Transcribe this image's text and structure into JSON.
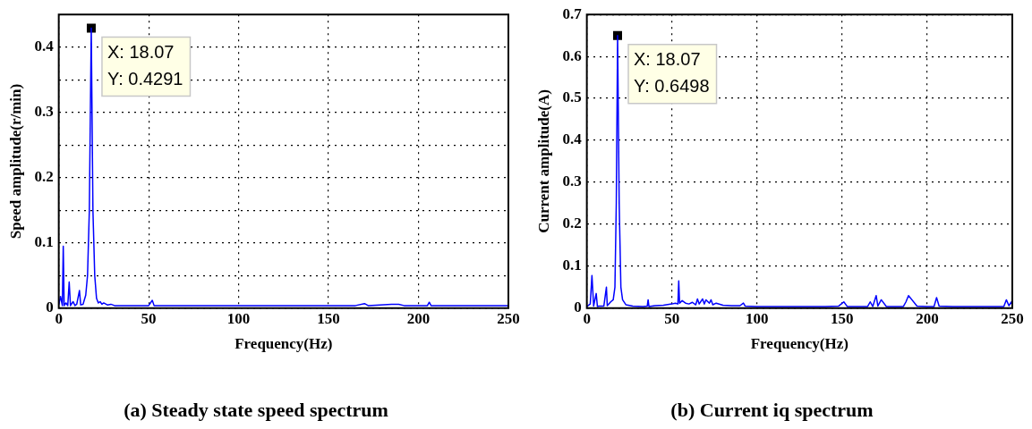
{
  "chart_data": [
    {
      "type": "line",
      "title": "(a) Steady state speed spectrum",
      "xlabel": "Frequency(Hz)",
      "ylabel": "Speed amplitude(r/min)",
      "xlim": [
        0,
        250
      ],
      "xticks": [
        0,
        50,
        100,
        150,
        200,
        250
      ],
      "ylim": [
        0,
        0.45
      ],
      "yticks": [
        0,
        {
          "value": 0.05,
          "label": null
        },
        0.1,
        {
          "value": 0.15,
          "label": null
        },
        0.2,
        {
          "value": 0.25,
          "label": null
        },
        0.3,
        {
          "value": 0.35,
          "label": null
        },
        0.4
      ],
      "grid": true,
      "legend": false,
      "marker": "none",
      "line_style": "solid",
      "series": [
        {
          "color": "#0000ff",
          "x": [
            0,
            1,
            2,
            2.5,
            3,
            4,
            5,
            5.8,
            6.5,
            8,
            9,
            10,
            11.5,
            12.2,
            13.5,
            15,
            16,
            17,
            18.07,
            19,
            20,
            21,
            22,
            23,
            24,
            25,
            27,
            29,
            31,
            34,
            38,
            42,
            46,
            50,
            52,
            53,
            55,
            60,
            70,
            80,
            90,
            100,
            110,
            130,
            150,
            165,
            170,
            172,
            185,
            189,
            192,
            200,
            205,
            206,
            207,
            210,
            220,
            235,
            250
          ],
          "values": [
            0.005,
            0.018,
            0.004,
            0.095,
            0.004,
            0.008,
            0.004,
            0.04,
            0.004,
            0.01,
            0.004,
            0.006,
            0.027,
            0.005,
            0.006,
            0.02,
            0.05,
            0.15,
            0.4291,
            0.15,
            0.05,
            0.015,
            0.008,
            0.01,
            0.006,
            0.008,
            0.005,
            0.006,
            0.004,
            0.004,
            0.004,
            0.004,
            0.004,
            0.004,
            0.012,
            0.004,
            0.004,
            0.004,
            0.004,
            0.004,
            0.004,
            0.004,
            0.004,
            0.004,
            0.004,
            0.004,
            0.007,
            0.004,
            0.006,
            0.006,
            0.004,
            0.004,
            0.004,
            0.009,
            0.004,
            0.004,
            0.004,
            0.004,
            0.004
          ]
        },
        {
          "type": "scatter",
          "color": "#000000",
          "marker": "square",
          "x": [
            18.07
          ],
          "values": [
            0.4291
          ]
        }
      ],
      "annotations": [
        {
          "text": "X: 18.07\nY: 0.4291",
          "x": 18.07,
          "y": 0.4291
        }
      ]
    },
    {
      "type": "line",
      "title": "(b) Current iq spectrum",
      "xlabel": "Frequency(Hz)",
      "ylabel": "Current amplitude(A)",
      "xlim": [
        0,
        250
      ],
      "xticks": [
        0,
        50,
        100,
        150,
        200,
        250
      ],
      "ylim": [
        0,
        0.7
      ],
      "yticks": [
        0,
        0.1,
        0.2,
        0.3,
        0.4,
        0.5,
        0.6,
        0.7
      ],
      "grid": true,
      "legend": false,
      "marker": "none",
      "line_style": "solid",
      "series": [
        {
          "color": "#0000ff",
          "x": [
            0,
            2,
            3,
            4,
            5.5,
            6.2,
            7,
            10,
            11.5,
            12,
            12.5,
            14,
            15.5,
            16.5,
            17.3,
            18.07,
            19,
            20,
            21,
            23,
            27,
            33,
            35.5,
            36,
            36.5,
            40,
            45,
            50,
            52,
            53.5,
            54,
            54.5,
            56,
            58,
            60,
            62,
            64,
            65,
            66,
            68,
            69,
            70,
            72,
            73,
            74,
            76,
            80,
            85,
            90,
            92,
            93,
            100,
            110,
            120,
            140,
            148,
            151,
            153,
            160,
            165,
            166.5,
            168,
            170,
            171,
            173,
            176,
            180,
            186,
            187.5,
            189,
            194,
            200,
            204,
            205.5,
            207,
            215,
            230,
            245,
            246.5,
            248,
            249.5,
            250
          ],
          "values": [
            0.004,
            0.01,
            0.078,
            0.005,
            0.035,
            0.004,
            0.005,
            0.005,
            0.05,
            0.006,
            0.008,
            0.015,
            0.02,
            0.05,
            0.25,
            0.6498,
            0.25,
            0.05,
            0.02,
            0.008,
            0.005,
            0.004,
            0.005,
            0.02,
            0.004,
            0.006,
            0.007,
            0.01,
            0.012,
            0.01,
            0.065,
            0.012,
            0.018,
            0.012,
            0.01,
            0.014,
            0.008,
            0.022,
            0.01,
            0.022,
            0.01,
            0.02,
            0.012,
            0.02,
            0.008,
            0.012,
            0.007,
            0.006,
            0.006,
            0.012,
            0.005,
            0.004,
            0.004,
            0.004,
            0.004,
            0.005,
            0.015,
            0.004,
            0.004,
            0.004,
            0.015,
            0.004,
            0.03,
            0.005,
            0.02,
            0.004,
            0.004,
            0.004,
            0.015,
            0.03,
            0.005,
            0.004,
            0.004,
            0.025,
            0.005,
            0.004,
            0.004,
            0.004,
            0.02,
            0.006,
            0.015,
            0.005
          ]
        },
        {
          "type": "scatter",
          "color": "#000000",
          "marker": "square",
          "x": [
            18.07
          ],
          "values": [
            0.6498
          ]
        }
      ],
      "annotations": [
        {
          "text": "X: 18.07\nY: 0.6498",
          "x": 18.07,
          "y": 0.6498
        }
      ]
    }
  ]
}
